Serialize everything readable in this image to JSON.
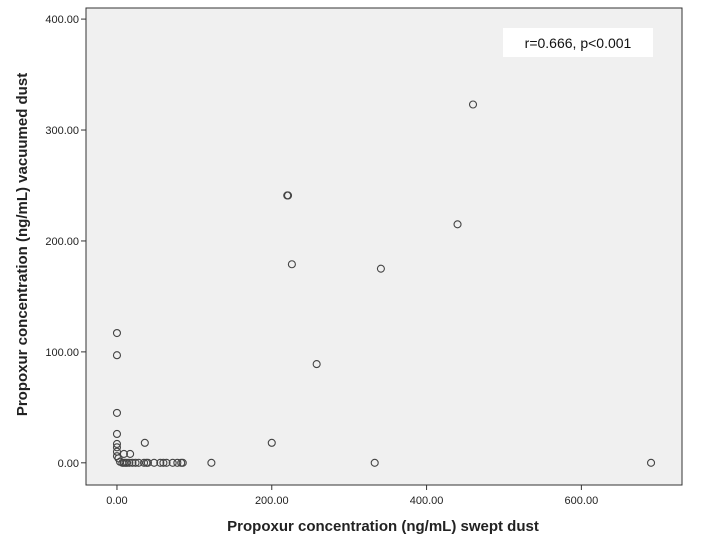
{
  "chart_data": {
    "type": "scatter",
    "title": "",
    "xlabel": "Propoxur concentration (ng/mL) swept dust",
    "ylabel": "Propoxur concentration (ng/mL)  vacuumed dust",
    "xlim": [
      -40,
      730
    ],
    "ylim": [
      -20,
      410
    ],
    "x_ticks": [
      0,
      200,
      400,
      600
    ],
    "x_tick_labels": [
      "0.00",
      "200.00",
      "400.00",
      "600.00"
    ],
    "y_ticks": [
      0,
      100,
      200,
      300,
      400
    ],
    "y_tick_labels": [
      "0.00",
      "100.00",
      "200.00",
      "300.00",
      "400.00"
    ],
    "grid": false,
    "annotation": "r=0.666, p<0.001",
    "colors": {
      "plot_background": "#f0f0f0",
      "marker_stroke": "#444444",
      "axis": "#333333"
    },
    "series": [
      {
        "marker": "open-circle",
        "points": [
          [
            460,
            323
          ],
          [
            220,
            241
          ],
          [
            221,
            241
          ],
          [
            440,
            215
          ],
          [
            226,
            179
          ],
          [
            341,
            175
          ],
          [
            0,
            117
          ],
          [
            0,
            97
          ],
          [
            258,
            89
          ],
          [
            0,
            45
          ],
          [
            0,
            26
          ],
          [
            0,
            17
          ],
          [
            0,
            14
          ],
          [
            0,
            10
          ],
          [
            0,
            6
          ],
          [
            2,
            4
          ],
          [
            9,
            8
          ],
          [
            17,
            8
          ],
          [
            200,
            18
          ],
          [
            36,
            18
          ],
          [
            4,
            1
          ],
          [
            7,
            0
          ],
          [
            9,
            0
          ],
          [
            11,
            0
          ],
          [
            13,
            0
          ],
          [
            16,
            0
          ],
          [
            20,
            0
          ],
          [
            24,
            0
          ],
          [
            28,
            0
          ],
          [
            35,
            0
          ],
          [
            38,
            0
          ],
          [
            40,
            0
          ],
          [
            48,
            0
          ],
          [
            56,
            0
          ],
          [
            60,
            0
          ],
          [
            64,
            0
          ],
          [
            72,
            0
          ],
          [
            78,
            0
          ],
          [
            83,
            0
          ],
          [
            85,
            0
          ],
          [
            122,
            0
          ],
          [
            333,
            0
          ],
          [
            690,
            0
          ]
        ]
      }
    ]
  }
}
